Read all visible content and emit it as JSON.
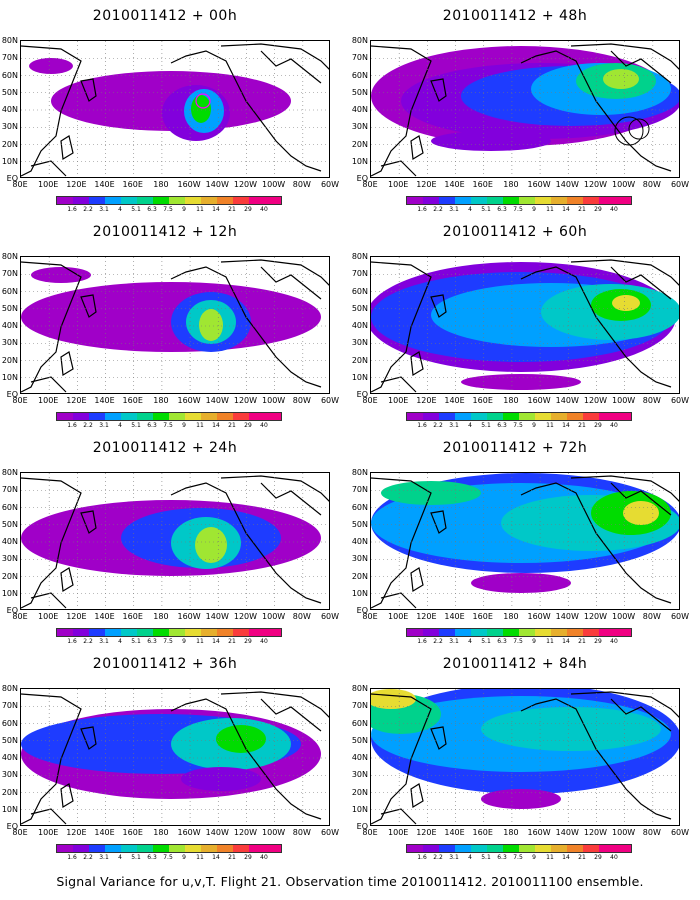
{
  "caption": "Signal Variance for u,v,T. Flight 21. Observation time 2010011412. 2010011100 ensemble.",
  "axes": {
    "lat_labels": [
      "80N",
      "70N",
      "60N",
      "50N",
      "40N",
      "30N",
      "20N",
      "10N",
      "EQ"
    ],
    "lon_labels": [
      "80E",
      "100E",
      "120E",
      "140E",
      "160E",
      "180",
      "160W",
      "140W",
      "120W",
      "100W",
      "80W",
      "60W"
    ]
  },
  "colorbar": {
    "labels": [
      "1.6",
      "2.2",
      "3.1",
      "4",
      "5.1",
      "6.3",
      "7.5",
      "9",
      "11",
      "14",
      "21",
      "29",
      "40"
    ],
    "colors": [
      "#a000c8",
      "#8200dc",
      "#1e3cff",
      "#00a0ff",
      "#00c8c8",
      "#00d28c",
      "#00dc00",
      "#a0e632",
      "#e6dc32",
      "#e6af2d",
      "#f08228",
      "#fa3c3c",
      "#f00082"
    ]
  },
  "panels": [
    {
      "title": "2010011412 + 00h"
    },
    {
      "title": "2010011412 + 48h"
    },
    {
      "title": "2010011412 + 12h"
    },
    {
      "title": "2010011412 + 60h"
    },
    {
      "title": "2010011412 + 24h"
    },
    {
      "title": "2010011412 + 72h"
    },
    {
      "title": "2010011412 + 36h"
    },
    {
      "title": "2010011412 + 84h"
    }
  ]
}
